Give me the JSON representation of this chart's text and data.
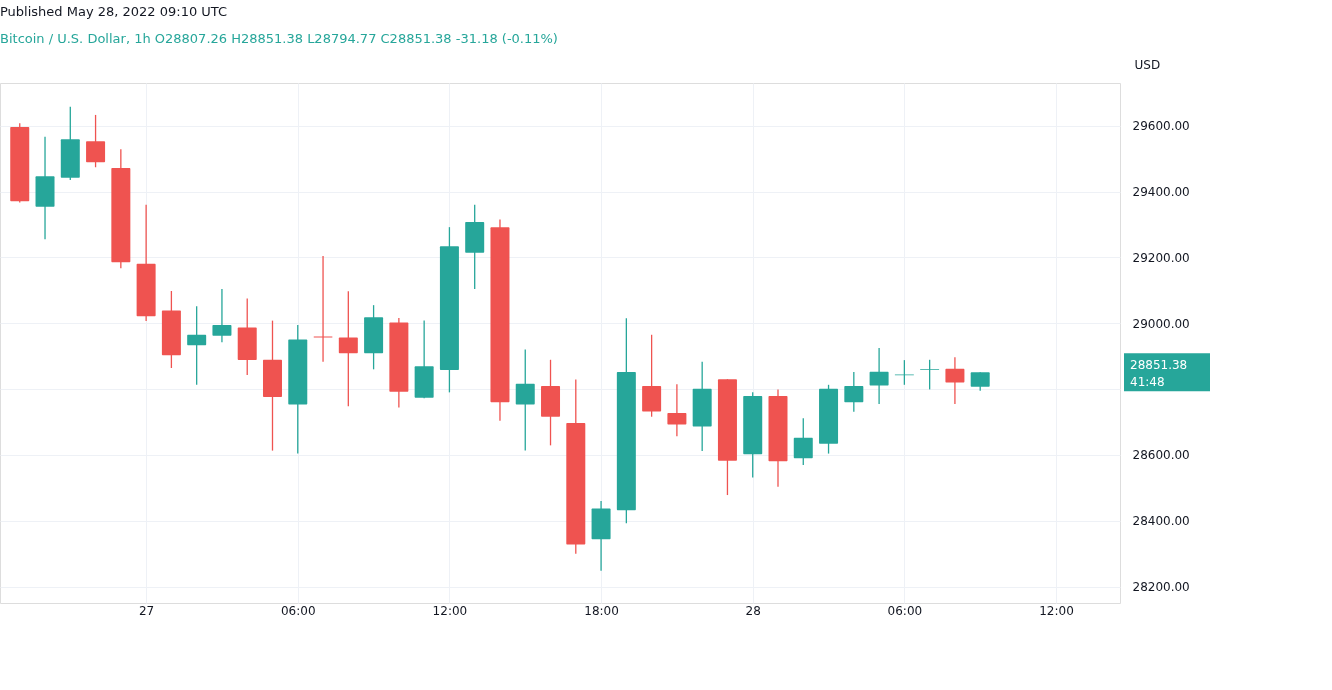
{
  "chart_data": {
    "type": "candlestick",
    "title": "Published May 28, 2022 09:10 UTC",
    "subtitle": "Bitcoin / U.S. Dollar, 1h  O28807.26  H28851.38  L28794.77  C28851.38  -31.18 (-0.11%)",
    "ylabel": "USD",
    "x": [
      "2022-05-26T19:00",
      "2022-05-26T20:00",
      "2022-05-26T21:00",
      "2022-05-26T22:00",
      "2022-05-26T23:00",
      "2022-05-27T00:00",
      "2022-05-27T01:00",
      "2022-05-27T02:00",
      "2022-05-27T03:00",
      "2022-05-27T04:00",
      "2022-05-27T05:00",
      "2022-05-27T06:00",
      "2022-05-27T07:00",
      "2022-05-27T08:00",
      "2022-05-27T09:00",
      "2022-05-27T10:00",
      "2022-05-27T11:00",
      "2022-05-27T12:00",
      "2022-05-27T13:00",
      "2022-05-27T14:00",
      "2022-05-27T15:00",
      "2022-05-27T16:00",
      "2022-05-27T17:00",
      "2022-05-27T18:00",
      "2022-05-27T19:00",
      "2022-05-27T20:00",
      "2022-05-27T21:00",
      "2022-05-27T22:00",
      "2022-05-27T23:00",
      "2022-05-28T00:00",
      "2022-05-28T01:00",
      "2022-05-28T02:00",
      "2022-05-28T03:00",
      "2022-05-28T04:00",
      "2022-05-28T05:00",
      "2022-05-28T06:00",
      "2022-05-28T07:00",
      "2022-05-28T08:00",
      "2022-05-28T09:00"
    ],
    "ohlc": [
      [
        29596,
        29608,
        29367,
        29371
      ],
      [
        29354,
        29567,
        29255,
        29447
      ],
      [
        29442,
        29658,
        29435,
        29559
      ],
      [
        29553,
        29633,
        29474,
        29489
      ],
      [
        29472,
        29529,
        29167,
        29185
      ],
      [
        29181,
        29360,
        29007,
        29021
      ],
      [
        29039,
        29098,
        28864,
        28903
      ],
      [
        28933,
        29052,
        28813,
        28965
      ],
      [
        28962,
        29104,
        28942,
        28995
      ],
      [
        28987,
        29075,
        28843,
        28888
      ],
      [
        28889,
        29008,
        28613,
        28776
      ],
      [
        28753,
        28995,
        28604,
        28951
      ],
      [
        28960,
        29204,
        28883,
        28957
      ],
      [
        28957,
        29097,
        28748,
        28909
      ],
      [
        28909,
        29055,
        28860,
        29018
      ],
      [
        29002,
        29016,
        28744,
        28792
      ],
      [
        28774,
        29008,
        28772,
        28869
      ],
      [
        28858,
        29292,
        28790,
        29234
      ],
      [
        29214,
        29360,
        29104,
        29308
      ],
      [
        29292,
        29315,
        28704,
        28760
      ],
      [
        28753,
        28920,
        28613,
        28816
      ],
      [
        28809,
        28889,
        28629,
        28716
      ],
      [
        28697,
        28829,
        28300,
        28328
      ],
      [
        28344,
        28460,
        28248,
        28437
      ],
      [
        28432,
        29015,
        28392,
        28852
      ],
      [
        28809,
        28965,
        28716,
        28732
      ],
      [
        28727,
        28815,
        28657,
        28692
      ],
      [
        28686,
        28883,
        28612,
        28801
      ],
      [
        28830,
        28830,
        28478,
        28582
      ],
      [
        28602,
        28790,
        28531,
        28779
      ],
      [
        28779,
        28799,
        28503,
        28581
      ],
      [
        28590,
        28711,
        28569,
        28652
      ],
      [
        28634,
        28813,
        28604,
        28801
      ],
      [
        28760,
        28852,
        28731,
        28809
      ],
      [
        28811,
        28925,
        28755,
        28853
      ],
      [
        28842,
        28888,
        28813,
        28844
      ],
      [
        28858,
        28889,
        28799,
        28860
      ],
      [
        28862,
        28897,
        28755,
        28820
      ],
      [
        28807.26,
        28851.38,
        28794.77,
        28851.38
      ]
    ],
    "colors": [
      "#ef5350",
      "#26a69a",
      "#26a69a",
      "#ef5350",
      "#ef5350",
      "#ef5350",
      "#ef5350",
      "#26a69a",
      "#26a69a",
      "#ef5350",
      "#ef5350",
      "#26a69a",
      "#ef5350",
      "#ef5350",
      "#26a69a",
      "#ef5350",
      "#26a69a",
      "#26a69a",
      "#26a69a",
      "#ef5350",
      "#26a69a",
      "#ef5350",
      "#ef5350",
      "#26a69a",
      "#26a69a",
      "#ef5350",
      "#ef5350",
      "#26a69a",
      "#ef5350",
      "#26a69a",
      "#ef5350",
      "#26a69a",
      "#26a69a",
      "#26a69a",
      "#26a69a",
      "#26a69a",
      "#26a69a",
      "#ef5350",
      "#26a69a"
    ],
    "xlim": [
      "2022-05-26T18:25",
      "2022-05-28T14:20"
    ],
    "xticks": [
      {
        "value": "2022-05-27T00:00",
        "label": "27"
      },
      {
        "value": "2022-05-27T06:00",
        "label": "06:00"
      },
      {
        "value": "2022-05-27T12:00",
        "label": "12:00"
      },
      {
        "value": "2022-05-27T18:00",
        "label": "18:00"
      },
      {
        "value": "2022-05-28T00:00",
        "label": "28"
      },
      {
        "value": "2022-05-28T06:00",
        "label": "06:00"
      },
      {
        "value": "2022-05-28T12:00",
        "label": "12:00"
      }
    ],
    "ylim": [
      28150,
      29730
    ],
    "yticks": [
      {
        "value": 28200,
        "label": "28200.00"
      },
      {
        "value": 28400,
        "label": "28400.00"
      },
      {
        "value": 28600,
        "label": "28600.00"
      },
      {
        "value": 28800,
        "label": null
      },
      {
        "value": 29000,
        "label": "29000.00"
      },
      {
        "value": 29200,
        "label": "29200.00"
      },
      {
        "value": 29400,
        "label": "29400.00"
      },
      {
        "value": 29600,
        "label": "29600.00"
      }
    ],
    "grid": true,
    "annotations": [
      "28851.38\n41:48"
    ]
  }
}
